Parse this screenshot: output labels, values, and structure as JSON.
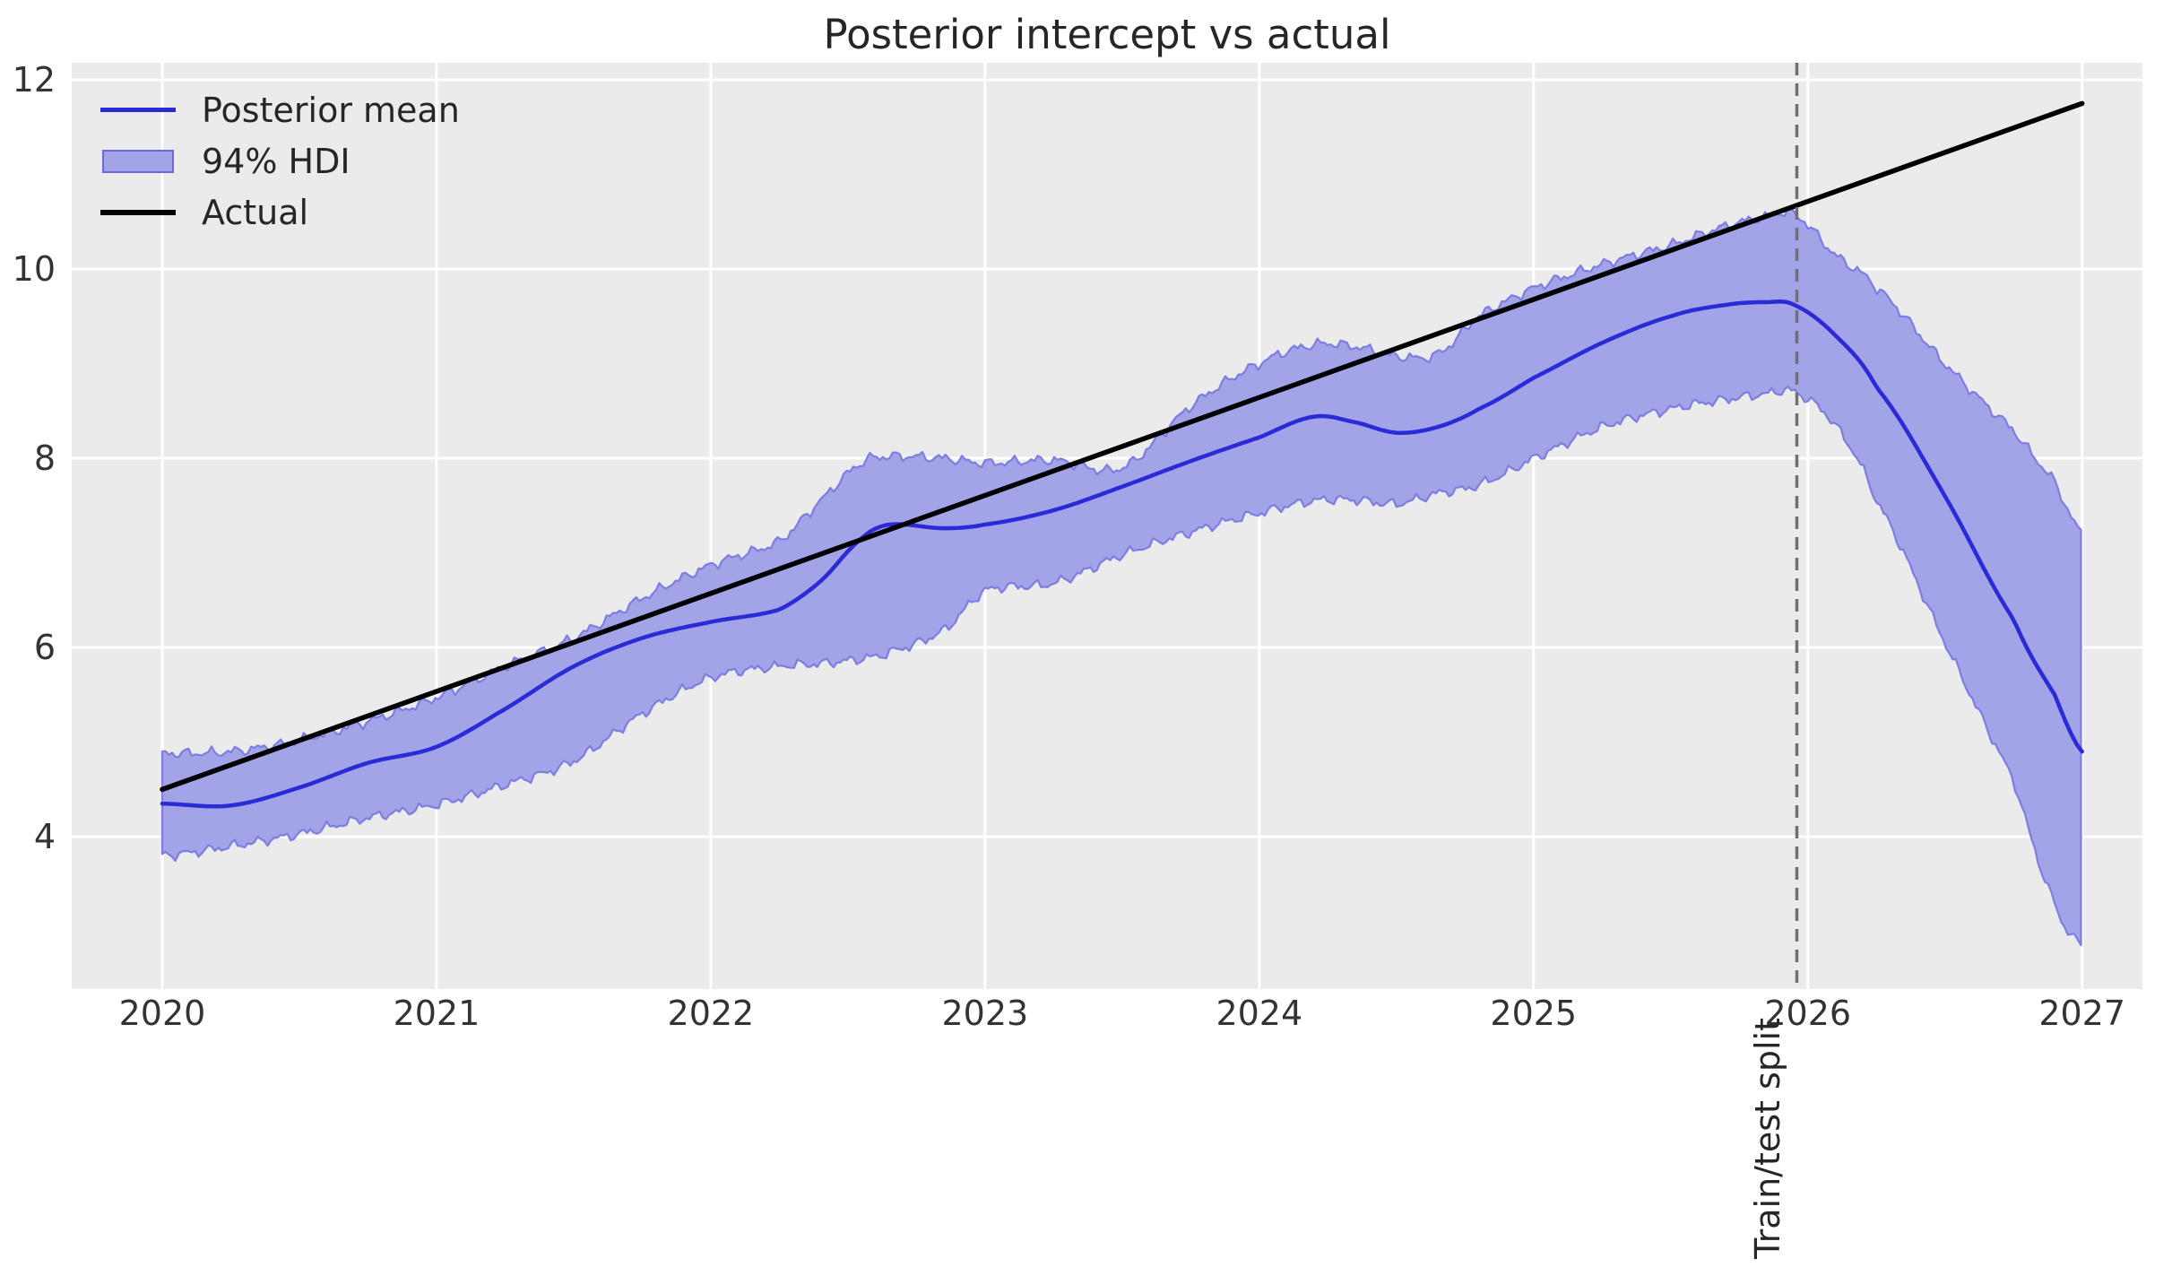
{
  "chart_data": {
    "type": "line",
    "title": "Posterior intercept vs actual",
    "xlabel": "",
    "ylabel": "",
    "xlim": [
      2019.67,
      2027.22
    ],
    "ylim": [
      2.39,
      12.18
    ],
    "x_ticks": [
      "2020",
      "2021",
      "2022",
      "2023",
      "2024",
      "2025",
      "2026",
      "2027"
    ],
    "x_tick_values": [
      2020,
      2021,
      2022,
      2023,
      2024,
      2025,
      2026,
      2027
    ],
    "y_ticks": [
      "4",
      "6",
      "8",
      "10",
      "12"
    ],
    "y_tick_values": [
      4,
      6,
      8,
      10,
      12
    ],
    "grid": "on",
    "background_color": "#ebebeb",
    "grid_color": "#ffffff",
    "x": [
      2020.0,
      2020.25,
      2020.5,
      2020.75,
      2021.0,
      2021.25,
      2021.5,
      2021.75,
      2022.0,
      2022.25,
      2022.4,
      2022.55,
      2022.65,
      2022.85,
      2023.0,
      2023.25,
      2023.5,
      2023.75,
      2024.0,
      2024.2,
      2024.35,
      2024.5,
      2024.65,
      2024.8,
      2025.0,
      2025.25,
      2025.5,
      2025.7,
      2025.85,
      2025.95,
      2026.1,
      2026.25,
      2026.5,
      2026.75,
      2026.9,
      2027.0
    ],
    "series": [
      {
        "name": "Posterior mean",
        "kind": "line",
        "color": "#2a2ad6",
        "values": [
          4.35,
          4.33,
          4.52,
          4.78,
          4.95,
          5.35,
          5.8,
          6.1,
          6.27,
          6.4,
          6.7,
          7.15,
          7.3,
          7.26,
          7.3,
          7.45,
          7.7,
          7.97,
          8.22,
          8.44,
          8.38,
          8.27,
          8.33,
          8.52,
          8.85,
          9.22,
          9.5,
          9.62,
          9.65,
          9.62,
          9.3,
          8.75,
          7.6,
          6.3,
          5.5,
          4.9
        ]
      },
      {
        "name": "94% HDI",
        "kind": "band",
        "fill_color": "#a3a3e8",
        "edge_color": "#7d7de2",
        "lower": [
          3.8,
          3.9,
          4.03,
          4.2,
          4.34,
          4.55,
          4.8,
          5.3,
          5.68,
          5.8,
          5.83,
          5.88,
          5.95,
          6.18,
          6.6,
          6.68,
          6.98,
          7.22,
          7.42,
          7.55,
          7.56,
          7.52,
          7.63,
          7.72,
          8.0,
          8.33,
          8.52,
          8.62,
          8.68,
          8.7,
          8.35,
          7.55,
          6.05,
          4.6,
          3.3,
          2.85
        ],
        "upper": [
          4.88,
          4.9,
          5.02,
          5.22,
          5.47,
          5.8,
          6.1,
          6.52,
          6.87,
          7.12,
          7.55,
          7.95,
          8.02,
          8.0,
          7.95,
          7.98,
          7.9,
          8.55,
          9.0,
          9.2,
          9.18,
          9.08,
          9.1,
          9.5,
          9.8,
          10.05,
          10.25,
          10.45,
          10.55,
          10.58,
          10.15,
          9.8,
          9.0,
          8.3,
          7.75,
          7.2
        ]
      },
      {
        "name": "Actual",
        "kind": "line",
        "color": "#000000",
        "x": [
          2020.0,
          2027.0
        ],
        "values": [
          4.5,
          11.75
        ]
      }
    ],
    "annotations": [
      {
        "type": "vline",
        "x": 2025.96,
        "text": "Train/test split",
        "color": "#707070",
        "style": "dashed"
      }
    ],
    "legend": {
      "position": "upper left",
      "frame": "off",
      "entries": [
        "Posterior mean",
        "94% HDI",
        "Actual"
      ]
    }
  }
}
